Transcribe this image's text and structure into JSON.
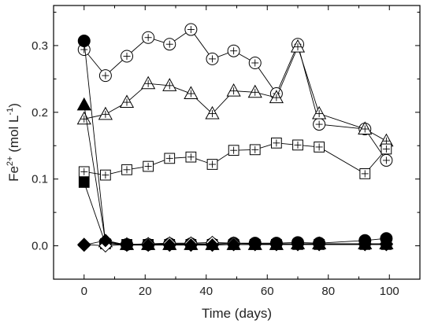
{
  "chart_data": {
    "type": "scatter",
    "title": "",
    "xlabel": "Time (days)",
    "ylabel": {
      "base": "Fe",
      "sup": "2+",
      "unit_open": " (mol L",
      "unit_sup": "-1",
      "unit_close": ")"
    },
    "xlim": [
      -10,
      110
    ],
    "ylim": [
      -0.05,
      0.36
    ],
    "x_ticks": [
      0,
      20,
      40,
      60,
      80,
      100
    ],
    "y_ticks": [
      0.0,
      0.1,
      0.2,
      0.3
    ],
    "y_tick_labels": [
      "0.0",
      "0.1",
      "0.2",
      "0.3"
    ],
    "grid": false,
    "legend": "none",
    "series": [
      {
        "marker": "circle-open-plus",
        "x": [
          0,
          7,
          14,
          21,
          28,
          35,
          42,
          49,
          56,
          63,
          70,
          77,
          92,
          99
        ],
        "y": [
          0.294,
          0.255,
          0.284,
          0.312,
          0.302,
          0.324,
          0.28,
          0.292,
          0.274,
          0.228,
          0.302,
          0.182,
          0.175,
          0.128
        ]
      },
      {
        "marker": "triangle-open-plus",
        "x": [
          0,
          7,
          14,
          21,
          28,
          35,
          42,
          49,
          56,
          63,
          70,
          77,
          92,
          99
        ],
        "y": [
          0.19,
          0.197,
          0.215,
          0.243,
          0.24,
          0.228,
          0.198,
          0.232,
          0.23,
          0.222,
          0.298,
          0.198,
          0.175,
          0.157
        ]
      },
      {
        "marker": "square-open-plus",
        "x": [
          0,
          7,
          14,
          21,
          28,
          35,
          42,
          49,
          56,
          63,
          70,
          77,
          92,
          99
        ],
        "y": [
          0.111,
          0.106,
          0.114,
          0.119,
          0.131,
          0.133,
          0.122,
          0.143,
          0.144,
          0.154,
          0.151,
          0.148,
          0.108,
          0.145
        ]
      },
      {
        "marker": "circle-filled",
        "x": [
          0,
          7,
          14,
          21,
          28,
          35,
          42,
          49,
          56,
          63,
          70,
          77,
          92,
          99
        ],
        "y": [
          0.307,
          0.004,
          0.002,
          0.002,
          0.003,
          0.003,
          0.003,
          0.004,
          0.004,
          0.004,
          0.005,
          0.004,
          0.008,
          0.011
        ]
      },
      {
        "marker": "triangle-filled",
        "x": [
          0,
          7,
          14,
          21,
          28,
          35,
          42,
          49,
          56,
          63,
          70,
          77,
          92,
          99
        ],
        "y": [
          0.211,
          0.006,
          0.002,
          0.002,
          0.002,
          0.002,
          0.002,
          0.002,
          0.002,
          0.002,
          0.003,
          0.003,
          0.003,
          0.003
        ]
      },
      {
        "marker": "square-filled",
        "x": [
          0,
          7,
          14,
          21,
          28,
          35,
          42,
          49,
          56,
          63,
          70,
          77,
          92,
          99
        ],
        "y": [
          0.095,
          0.003,
          0.002,
          0.002,
          0.002,
          0.002,
          0.002,
          0.002,
          0.002,
          0.002,
          0.002,
          0.002,
          0.002,
          0.002
        ]
      },
      {
        "marker": "diamond-open",
        "x": [
          0,
          7,
          14,
          21,
          28,
          35,
          42,
          49,
          56,
          63,
          70,
          77,
          92,
          99
        ],
        "y": [
          0.002,
          0.0,
          0.002,
          0.003,
          0.004,
          0.004,
          0.005,
          0.004,
          0.003,
          0.003,
          0.003,
          0.003,
          0.003,
          0.003
        ]
      },
      {
        "marker": "diamond-filled",
        "x": [
          0,
          7,
          14,
          21,
          28,
          35,
          42,
          49,
          56,
          63,
          70,
          77,
          92,
          99
        ],
        "y": [
          0.001,
          0.008,
          0.001,
          0.001,
          0.001,
          0.001,
          0.001,
          0.002,
          0.002,
          0.002,
          0.002,
          0.002,
          0.002,
          0.002
        ]
      }
    ]
  }
}
